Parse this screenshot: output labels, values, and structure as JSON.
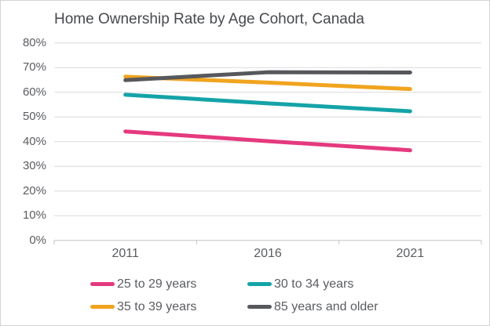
{
  "chart": {
    "title": "Home Ownership Rate by Age Cohort, Canada"
  },
  "chart_data": {
    "type": "line",
    "title": "Home Ownership Rate by Age Cohort, Canada",
    "categories": [
      "2011",
      "2016",
      "2021"
    ],
    "series": [
      {
        "name": "25 to 29 years",
        "color": "#E5397E",
        "values": [
          44.1,
          40.2,
          36.5
        ]
      },
      {
        "name": "30 to 34 years",
        "color": "#14A3A8",
        "values": [
          59.0,
          55.5,
          52.3
        ]
      },
      {
        "name": "35 to 39 years",
        "color": "#F0A41E",
        "values": [
          66.3,
          63.9,
          61.3
        ]
      },
      {
        "name": "85 years and older",
        "color": "#56585C",
        "values": [
          64.9,
          68.1,
          68.0
        ]
      }
    ],
    "xlabel": "",
    "ylabel": "",
    "ylim": [
      0,
      80
    ],
    "ytick_step": 10,
    "ytick_labels": [
      "0%",
      "10%",
      "20%",
      "30%",
      "40%",
      "50%",
      "60%",
      "70%",
      "80%"
    ],
    "grid": true,
    "legend_position": "bottom"
  },
  "colors": {
    "background": "#FFFFFF",
    "border": "#D4D4D4",
    "gridline": "#DADADA",
    "axis": "#C3C3C3",
    "tick_text": "#5A5C60",
    "title_text": "#47494E"
  }
}
